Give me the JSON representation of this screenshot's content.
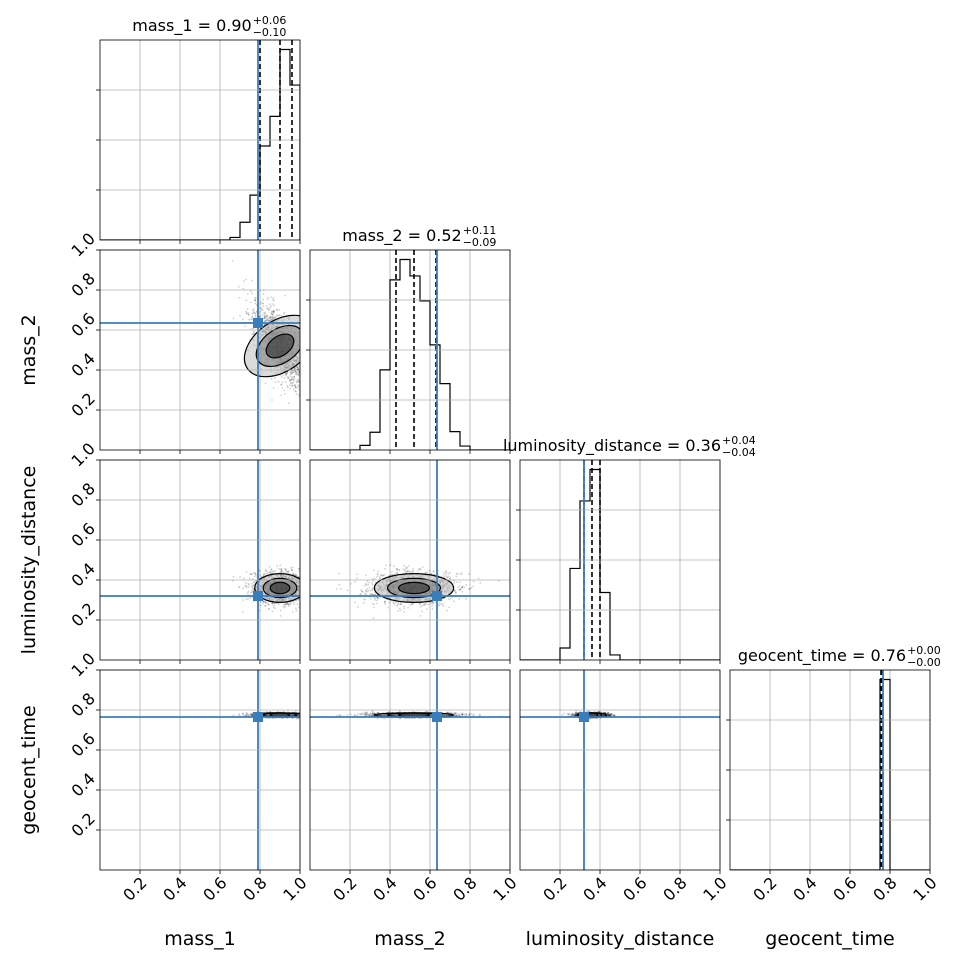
{
  "chart_data": {
    "type": "corner",
    "parameters": [
      "mass_1",
      "mass_2",
      "luminosity_distance",
      "geocent_time"
    ],
    "axis_labels": [
      "mass_1",
      "mass_2",
      "luminosity_distance",
      "geocent_time"
    ],
    "range": [
      0,
      1
    ],
    "ticks": [
      0.2,
      0.4,
      0.6,
      0.8,
      1.0
    ],
    "tick_labels": [
      "0.2",
      "0.4",
      "0.6",
      "0.8",
      "1.0"
    ],
    "grid": true,
    "truth_color": "#3a7dbb",
    "hist_color": "#000000",
    "truths": [
      0.79,
      0.635,
      0.32,
      0.765
    ],
    "titles": [
      {
        "param": "mass_1",
        "median": "0.90",
        "plus": "+0.06",
        "minus": "−0.10"
      },
      {
        "param": "mass_2",
        "median": "0.52",
        "plus": "+0.11",
        "minus": "−0.09"
      },
      {
        "param": "luminosity_distance",
        "median": "0.36",
        "plus": "+0.04",
        "minus": "−0.04"
      },
      {
        "param": "geocent_time",
        "median": "0.76",
        "plus": "+0.00",
        "minus": "−0.00"
      }
    ],
    "quantiles": [
      [
        0.8,
        0.9,
        0.96
      ],
      [
        0.43,
        0.52,
        0.63
      ],
      [
        0.32,
        0.36,
        0.4
      ],
      [
        0.755,
        0.76,
        0.76
      ]
    ],
    "histograms": [
      {
        "bin_edges": [
          0.65,
          0.7,
          0.75,
          0.8,
          0.85,
          0.9,
          0.95,
          1.0
        ],
        "counts": [
          0.03,
          0.21,
          0.53,
          1.11,
          1.46,
          2.25,
          1.83
        ]
      },
      {
        "bin_edges": [
          0.25,
          0.3,
          0.35,
          0.4,
          0.45,
          0.5,
          0.55,
          0.6,
          0.65,
          0.7,
          0.75,
          0.8
        ],
        "counts": [
          0.07,
          0.27,
          1.22,
          2.59,
          2.9,
          2.65,
          2.27,
          1.6,
          1.01,
          0.28,
          0.06
        ]
      },
      {
        "bin_edges": [
          0.2,
          0.25,
          0.3,
          0.35,
          0.4,
          0.45,
          0.5
        ],
        "counts": [
          0.26,
          1.98,
          3.44,
          4.12,
          1.46,
          0.11
        ]
      },
      {
        "bin_edges": [
          0.75,
          0.8
        ],
        "counts": [
          4.05
        ]
      }
    ]
  }
}
